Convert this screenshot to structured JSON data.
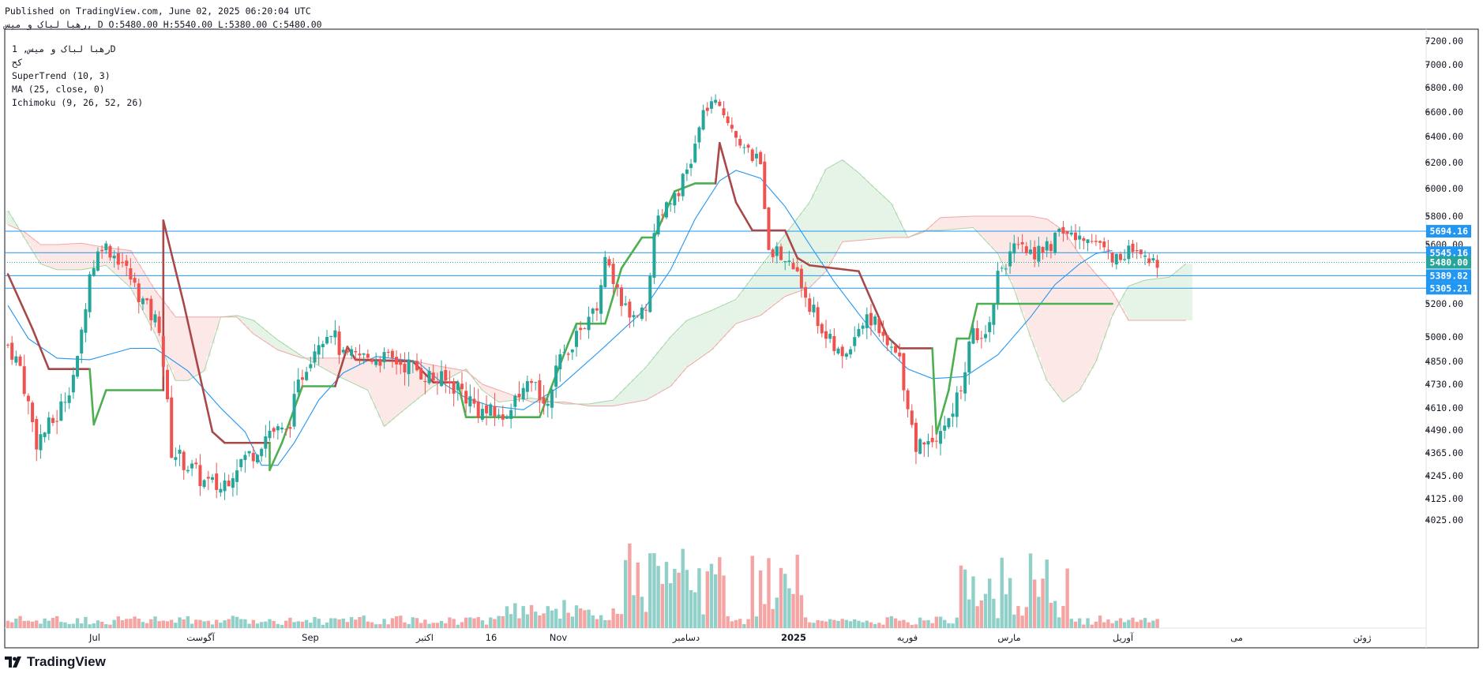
{
  "header": {
    "published": "Published on TradingView.com, June 02, 2025 06:20:04 UTC",
    "ohlc": "رهبا لباک و میس, D O:5480.00 H:5540.00 L:5380.00 C:5480.00"
  },
  "legend": {
    "symbol": "رهبا لباک و میس, 1D",
    "exchange": "کح",
    "supertrend": "SuperTrend (10, 3)",
    "ma": "MA (25, close, 0)",
    "ichimoku": "Ichimoku (9, 26, 52, 26)"
  },
  "footer": {
    "brand": "TradingView"
  },
  "colors": {
    "up": "#26a69a",
    "down": "#ef5350",
    "supertrend_up": "#4caf50",
    "supertrend_down": "#a84848",
    "ma": "#2196f3",
    "hline": "#2196f3",
    "cloud_bull": "#e6f4e8",
    "cloud_bear": "#fde8e8"
  },
  "chart_data": {
    "type": "candlestick",
    "title": "رهبا لباک و میس, 1D",
    "x_ticks": [
      "Jul",
      "آگوست",
      "Sep",
      "اکتبر",
      "16",
      "Nov",
      "دسامبر",
      "2025",
      "فوریه",
      "مارس",
      "آوریل",
      "می",
      "ژوئن"
    ],
    "y_ticks": [
      "7200.00",
      "7000.00",
      "6800.00",
      "6600.00",
      "6400.00",
      "6200.00",
      "6000.00",
      "5800.00",
      "5600.00",
      "5200.00",
      "5000.00",
      "4850.00",
      "4730.00",
      "4610.00",
      "4490.00",
      "4365.00",
      "4245.00",
      "4125.00",
      "4025.00"
    ],
    "price_labels": [
      {
        "label": "5694.16",
        "value": 5694.16,
        "style": "line"
      },
      {
        "label": "5545.16",
        "value": 5545.16,
        "style": "line"
      },
      {
        "label": "5480.00",
        "value": 5480.0,
        "style": "last"
      },
      {
        "label": "5389.82",
        "value": 5389.82,
        "style": "line"
      },
      {
        "label": "5305.21",
        "value": 5305.21,
        "style": "line"
      }
    ],
    "supertrend": [
      {
        "i": 0,
        "v": 5400,
        "d": -1
      },
      {
        "i": 6,
        "v": 5050,
        "d": -1
      },
      {
        "i": 10,
        "v": 4810,
        "d": -1
      },
      {
        "i": 20,
        "v": 4810,
        "d": -1
      },
      {
        "i": 21,
        "v": 4520,
        "d": 1
      },
      {
        "i": 24,
        "v": 4700,
        "d": 1
      },
      {
        "i": 38,
        "v": 4700,
        "d": 1
      },
      {
        "i": 38,
        "v": 5770,
        "d": -1
      },
      {
        "i": 43,
        "v": 5200,
        "d": -1
      },
      {
        "i": 50,
        "v": 4480,
        "d": -1
      },
      {
        "i": 53,
        "v": 4420,
        "d": -1
      },
      {
        "i": 64,
        "v": 4420,
        "d": -1
      },
      {
        "i": 64,
        "v": 4275,
        "d": 1
      },
      {
        "i": 67,
        "v": 4420,
        "d": 1
      },
      {
        "i": 72,
        "v": 4720,
        "d": 1
      },
      {
        "i": 80,
        "v": 4720,
        "d": 1
      },
      {
        "i": 83,
        "v": 4940,
        "d": -1
      },
      {
        "i": 85,
        "v": 4860,
        "d": -1
      },
      {
        "i": 99,
        "v": 4850,
        "d": -1
      },
      {
        "i": 104,
        "v": 4740,
        "d": -1
      },
      {
        "i": 110,
        "v": 4740,
        "d": -1
      },
      {
        "i": 112,
        "v": 4560,
        "d": 1
      },
      {
        "i": 130,
        "v": 4560,
        "d": 1
      },
      {
        "i": 137,
        "v": 4960,
        "d": 1
      },
      {
        "i": 139,
        "v": 5080,
        "d": 1
      },
      {
        "i": 146,
        "v": 5080,
        "d": 1
      },
      {
        "i": 150,
        "v": 5440,
        "d": 1
      },
      {
        "i": 155,
        "v": 5650,
        "d": 1
      },
      {
        "i": 158,
        "v": 5650,
        "d": 1
      },
      {
        "i": 163,
        "v": 5980,
        "d": 1
      },
      {
        "i": 168,
        "v": 6040,
        "d": 1
      },
      {
        "i": 173,
        "v": 6040,
        "d": 1
      },
      {
        "i": 174,
        "v": 6350,
        "d": -1
      },
      {
        "i": 178,
        "v": 5900,
        "d": -1
      },
      {
        "i": 182,
        "v": 5700,
        "d": -1
      },
      {
        "i": 190,
        "v": 5700,
        "d": -1
      },
      {
        "i": 193,
        "v": 5510,
        "d": -1
      },
      {
        "i": 196,
        "v": 5460,
        "d": -1
      },
      {
        "i": 208,
        "v": 5420,
        "d": -1
      },
      {
        "i": 215,
        "v": 5000,
        "d": -1
      },
      {
        "i": 218,
        "v": 4930,
        "d": -1
      },
      {
        "i": 226,
        "v": 4930,
        "d": -1
      },
      {
        "i": 227,
        "v": 4470,
        "d": 1
      },
      {
        "i": 230,
        "v": 4700,
        "d": 1
      },
      {
        "i": 232,
        "v": 4990,
        "d": 1
      },
      {
        "i": 235,
        "v": 4990,
        "d": 1
      },
      {
        "i": 237,
        "v": 5200,
        "d": 1
      },
      {
        "i": 270,
        "v": 5200,
        "d": 1
      }
    ],
    "ma": [
      {
        "i": 0,
        "v": 5190
      },
      {
        "i": 5,
        "v": 4990
      },
      {
        "i": 12,
        "v": 4870
      },
      {
        "i": 20,
        "v": 4860
      },
      {
        "i": 30,
        "v": 4930
      },
      {
        "i": 36,
        "v": 4930
      },
      {
        "i": 44,
        "v": 4800
      },
      {
        "i": 52,
        "v": 4610
      },
      {
        "i": 58,
        "v": 4480
      },
      {
        "i": 62,
        "v": 4300
      },
      {
        "i": 66,
        "v": 4300
      },
      {
        "i": 70,
        "v": 4420
      },
      {
        "i": 76,
        "v": 4650
      },
      {
        "i": 82,
        "v": 4790
      },
      {
        "i": 90,
        "v": 4880
      },
      {
        "i": 100,
        "v": 4850
      },
      {
        "i": 106,
        "v": 4740
      },
      {
        "i": 112,
        "v": 4660
      },
      {
        "i": 118,
        "v": 4620
      },
      {
        "i": 126,
        "v": 4600
      },
      {
        "i": 135,
        "v": 4720
      },
      {
        "i": 145,
        "v": 4920
      },
      {
        "i": 155,
        "v": 5150
      },
      {
        "i": 162,
        "v": 5430
      },
      {
        "i": 168,
        "v": 5780
      },
      {
        "i": 174,
        "v": 6060
      },
      {
        "i": 178,
        "v": 6140
      },
      {
        "i": 184,
        "v": 6080
      },
      {
        "i": 190,
        "v": 5870
      },
      {
        "i": 196,
        "v": 5600
      },
      {
        "i": 202,
        "v": 5350
      },
      {
        "i": 208,
        "v": 5140
      },
      {
        "i": 214,
        "v": 4950
      },
      {
        "i": 220,
        "v": 4810
      },
      {
        "i": 226,
        "v": 4760
      },
      {
        "i": 234,
        "v": 4770
      },
      {
        "i": 242,
        "v": 4890
      },
      {
        "i": 250,
        "v": 5120
      },
      {
        "i": 256,
        "v": 5330
      },
      {
        "i": 262,
        "v": 5470
      },
      {
        "i": 266,
        "v": 5540
      },
      {
        "i": 270,
        "v": 5560
      }
    ],
    "cloud": [
      {
        "i": 0,
        "a": 5840,
        "b": 5740
      },
      {
        "i": 4,
        "a": 5650,
        "b": 5690
      },
      {
        "i": 8,
        "a": 5470,
        "b": 5600
      },
      {
        "i": 12,
        "a": 5430,
        "b": 5600
      },
      {
        "i": 18,
        "a": 5430,
        "b": 5610
      },
      {
        "i": 24,
        "a": 5460,
        "b": 5580
      },
      {
        "i": 30,
        "a": 5310,
        "b": 5560
      },
      {
        "i": 36,
        "a": 5020,
        "b": 5290
      },
      {
        "i": 41,
        "a": 4750,
        "b": 5120
      },
      {
        "i": 44,
        "a": 4750,
        "b": 5120
      },
      {
        "i": 48,
        "a": 4800,
        "b": 5120
      },
      {
        "i": 52,
        "a": 5120,
        "b": 5120
      },
      {
        "i": 56,
        "a": 5130,
        "b": 5120
      },
      {
        "i": 60,
        "a": 5100,
        "b": 5020
      },
      {
        "i": 66,
        "a": 4980,
        "b": 4920
      },
      {
        "i": 72,
        "a": 4880,
        "b": 4870
      },
      {
        "i": 80,
        "a": 4780,
        "b": 4870
      },
      {
        "i": 88,
        "a": 4700,
        "b": 4870
      },
      {
        "i": 92,
        "a": 4510,
        "b": 4860
      },
      {
        "i": 98,
        "a": 4620,
        "b": 4860
      },
      {
        "i": 104,
        "a": 4720,
        "b": 4830
      },
      {
        "i": 112,
        "a": 4810,
        "b": 4800
      },
      {
        "i": 116,
        "a": 4700,
        "b": 4730
      },
      {
        "i": 120,
        "a": 4640,
        "b": 4700
      },
      {
        "i": 128,
        "a": 4660,
        "b": 4640
      },
      {
        "i": 136,
        "a": 4630,
        "b": 4640
      },
      {
        "i": 142,
        "a": 4630,
        "b": 4620
      },
      {
        "i": 148,
        "a": 4650,
        "b": 4620
      },
      {
        "i": 156,
        "a": 4820,
        "b": 4650
      },
      {
        "i": 162,
        "a": 5000,
        "b": 4720
      },
      {
        "i": 166,
        "a": 5100,
        "b": 4820
      },
      {
        "i": 172,
        "a": 5160,
        "b": 4920
      },
      {
        "i": 178,
        "a": 5230,
        "b": 5080
      },
      {
        "i": 184,
        "a": 5450,
        "b": 5130
      },
      {
        "i": 190,
        "a": 5670,
        "b": 5250
      },
      {
        "i": 196,
        "a": 5900,
        "b": 5310
      },
      {
        "i": 200,
        "a": 6150,
        "b": 5420
      },
      {
        "i": 204,
        "a": 6220,
        "b": 5620
      },
      {
        "i": 208,
        "a": 6120,
        "b": 5630
      },
      {
        "i": 212,
        "a": 6000,
        "b": 5640
      },
      {
        "i": 216,
        "a": 5890,
        "b": 5650
      },
      {
        "i": 220,
        "a": 5650,
        "b": 5650
      },
      {
        "i": 224,
        "a": 5700,
        "b": 5690
      },
      {
        "i": 228,
        "a": 5700,
        "b": 5790
      },
      {
        "i": 236,
        "a": 5720,
        "b": 5800
      },
      {
        "i": 242,
        "a": 5540,
        "b": 5800
      },
      {
        "i": 246,
        "a": 5300,
        "b": 5800
      },
      {
        "i": 250,
        "a": 5000,
        "b": 5800
      },
      {
        "i": 254,
        "a": 4750,
        "b": 5780
      },
      {
        "i": 258,
        "a": 4640,
        "b": 5700
      },
      {
        "i": 262,
        "a": 4700,
        "b": 5530
      },
      {
        "i": 266,
        "a": 4850,
        "b": 5400
      },
      {
        "i": 270,
        "a": 5130,
        "b": 5280
      },
      {
        "i": 274,
        "a": 5320,
        "b": 5100
      },
      {
        "i": 278,
        "a": 5360,
        "b": 5100
      },
      {
        "i": 284,
        "a": 5380,
        "b": 5100
      },
      {
        "i": 288,
        "a": 5470,
        "b": 5100
      }
    ]
  }
}
